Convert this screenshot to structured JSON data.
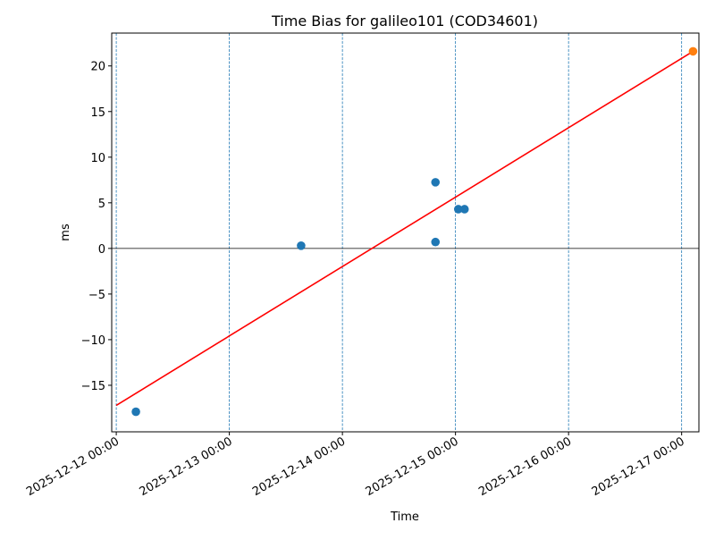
{
  "chart_data": {
    "type": "scatter",
    "title": "Time Bias for galileo101 (COD34601)",
    "xlabel": "Time",
    "ylabel": "ms",
    "xlim": [
      "2025-12-11T23:02",
      "2025-12-17T03:40"
    ],
    "ylim": [
      -20.1,
      23.6
    ],
    "x_ticks": [
      "2025-12-12 00:00",
      "2025-12-13 00:00",
      "2025-12-14 00:00",
      "2025-12-15 00:00",
      "2025-12-16 00:00",
      "2025-12-17 00:00"
    ],
    "y_ticks": [
      -15,
      -10,
      -5,
      0,
      5,
      10,
      15,
      20
    ],
    "y_tick_labels": [
      "−15",
      "−10",
      "−5",
      "0",
      "5",
      "10",
      "15",
      "20"
    ],
    "grid": "vertical dashed at x ticks",
    "zero_line": true,
    "series": [
      {
        "type": "scatter",
        "color": "#1f77b4",
        "points": [
          {
            "x": "2025-12-12T04:10",
            "y": -17.9
          },
          {
            "x": "2025-12-13T15:14",
            "y": 0.3
          },
          {
            "x": "2025-12-14T19:45",
            "y": 7.25
          },
          {
            "x": "2025-12-14T19:45",
            "y": 0.7
          },
          {
            "x": "2025-12-15T00:36",
            "y": 4.3
          },
          {
            "x": "2025-12-15T01:55",
            "y": 4.3
          }
        ]
      },
      {
        "type": "scatter",
        "color": "#ff7f0e",
        "points": [
          {
            "x": "2025-12-17T02:25",
            "y": 21.6
          }
        ]
      },
      {
        "type": "line",
        "color": "#ff0000",
        "points": [
          {
            "x": "2025-12-12T00:00",
            "y": -17.2
          },
          {
            "x": "2025-12-17T02:25",
            "y": 21.6
          }
        ]
      }
    ]
  }
}
